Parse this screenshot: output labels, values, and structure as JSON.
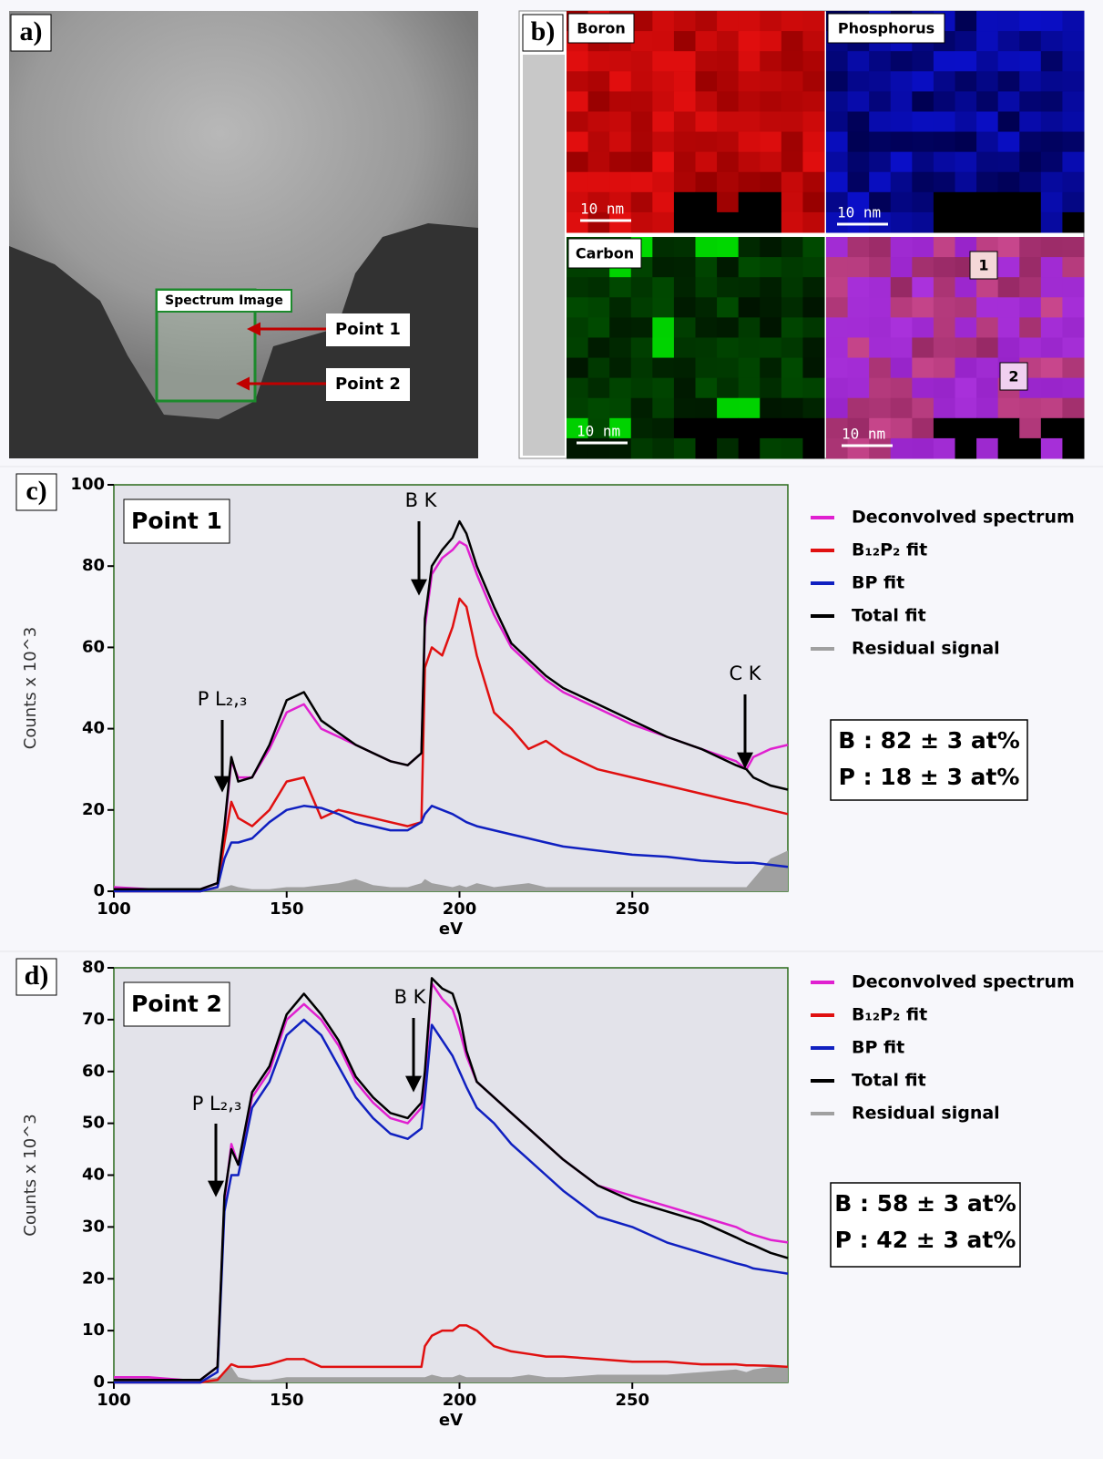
{
  "panel_a": {
    "label": "a)",
    "box_label": "Spectrum Image",
    "points": [
      "Point 1",
      "Point 2"
    ]
  },
  "panel_b": {
    "label": "b)",
    "maps": [
      "Boron",
      "Phosphorus",
      "Carbon"
    ],
    "scale_bar": "10 nm",
    "markers": [
      "1",
      "2"
    ]
  },
  "chart_data": [
    {
      "type": "line",
      "panel_label": "c)",
      "title": "Point 1",
      "x_label": "eV",
      "y_label": "Counts x 10^3",
      "x": [
        100,
        110,
        120,
        125,
        130,
        132,
        134,
        136,
        140,
        145,
        150,
        155,
        160,
        165,
        170,
        175,
        180,
        185,
        189,
        190,
        192,
        195,
        198,
        200,
        202,
        205,
        210,
        215,
        220,
        225,
        230,
        240,
        250,
        260,
        270,
        280,
        283,
        285,
        290,
        295
      ],
      "xlim": [
        100,
        295
      ],
      "xticks": [
        100,
        150,
        200,
        250
      ],
      "ylim": [
        0,
        100
      ],
      "yticks": [
        0,
        20,
        40,
        60,
        80,
        100
      ],
      "series": [
        {
          "name": "Deconvolved spectrum",
          "color": "#e020d0",
          "values": [
            1,
            0.5,
            0.5,
            0.5,
            2,
            15,
            32,
            28,
            28,
            35,
            44,
            46,
            40,
            38,
            36,
            34,
            32,
            31,
            34,
            65,
            78,
            82,
            84,
            86,
            85,
            78,
            68,
            60,
            56,
            52,
            49,
            45,
            41,
            38,
            35,
            32,
            30,
            33,
            35,
            36
          ]
        },
        {
          "name": "B₁₂P₂ fit",
          "color": "#e01010",
          "values": [
            0,
            0,
            0,
            0,
            1,
            12,
            22,
            18,
            16,
            20,
            27,
            28,
            18,
            20,
            19,
            18,
            17,
            16,
            17,
            55,
            60,
            58,
            65,
            72,
            70,
            58,
            44,
            40,
            35,
            37,
            34,
            30,
            28,
            26,
            24,
            22,
            21.5,
            21,
            20,
            19
          ]
        },
        {
          "name": "BP fit",
          "color": "#1020c0",
          "values": [
            0,
            0,
            0,
            0,
            1,
            8,
            12,
            12,
            13,
            17,
            20,
            21,
            20.5,
            19,
            17,
            16,
            15,
            15,
            17,
            19,
            21,
            20,
            19,
            18,
            17,
            16,
            15,
            14,
            13,
            12,
            11,
            10,
            9,
            8.5,
            7.5,
            7,
            7,
            7,
            6.5,
            6
          ]
        },
        {
          "name": "Total fit",
          "color": "#000000",
          "values": [
            0.5,
            0.5,
            0.5,
            0.5,
            2,
            16,
            33,
            27,
            28,
            36,
            47,
            49,
            42,
            39,
            36,
            34,
            32,
            31,
            34,
            67,
            80,
            84,
            87,
            91,
            88,
            80,
            70,
            61,
            57,
            53,
            50,
            46,
            42,
            38,
            35,
            31,
            30,
            28,
            26,
            25
          ]
        },
        {
          "name": "Residual signal",
          "color": "#a0a0a0",
          "values": [
            0.5,
            0.5,
            0.3,
            0.3,
            0.5,
            1,
            1.5,
            1,
            0.5,
            0.5,
            1,
            1,
            1.5,
            2,
            3,
            1.5,
            1,
            1,
            2,
            3,
            2,
            1.5,
            1,
            1.5,
            1,
            2,
            1,
            1.5,
            2,
            1,
            1,
            1,
            1,
            1,
            1,
            1,
            1,
            3,
            8,
            10
          ]
        }
      ],
      "annotations": [
        "B K",
        "P L₂,₃",
        "C K"
      ],
      "composition": [
        "B : 82 ± 3 at%",
        "P : 18 ± 3 at%"
      ]
    },
    {
      "type": "line",
      "panel_label": "d)",
      "title": "Point 2",
      "x_label": "eV",
      "y_label": "Counts x 10^3",
      "x": [
        100,
        110,
        120,
        125,
        130,
        132,
        134,
        136,
        140,
        145,
        150,
        155,
        160,
        165,
        170,
        175,
        180,
        185,
        189,
        190,
        192,
        195,
        198,
        200,
        202,
        205,
        210,
        215,
        220,
        225,
        230,
        240,
        250,
        260,
        270,
        280,
        283,
        285,
        290,
        295
      ],
      "xlim": [
        100,
        295
      ],
      "xticks": [
        100,
        150,
        200,
        250
      ],
      "ylim": [
        0,
        80
      ],
      "yticks": [
        0,
        10,
        20,
        30,
        40,
        50,
        60,
        70,
        80
      ],
      "series": [
        {
          "name": "Deconvolved spectrum",
          "color": "#e020d0",
          "values": [
            1,
            1,
            0.5,
            0.5,
            3,
            35,
            46,
            42,
            55,
            60,
            70,
            73,
            70,
            65,
            58,
            54,
            51,
            50,
            53,
            58,
            77,
            74,
            72,
            68,
            63,
            58,
            55,
            52,
            49,
            46,
            43,
            38,
            36,
            34,
            32,
            30,
            29,
            28.5,
            27.5,
            27
          ]
        },
        {
          "name": "B₁₂P₂ fit",
          "color": "#e01010",
          "values": [
            0,
            0,
            0,
            0,
            0.5,
            2,
            3.5,
            3,
            3,
            3.5,
            4.5,
            4.5,
            3,
            3,
            3,
            3,
            3,
            3,
            3,
            7,
            9,
            10,
            10,
            11,
            11,
            10,
            7,
            6,
            5.5,
            5,
            5,
            4.5,
            4,
            4,
            3.5,
            3.5,
            3.3,
            3.3,
            3.2,
            3
          ]
        },
        {
          "name": "BP fit",
          "color": "#1020c0",
          "values": [
            0,
            0,
            0,
            0,
            2,
            33,
            40,
            40,
            53,
            58,
            67,
            70,
            67,
            61,
            55,
            51,
            48,
            47,
            49,
            55,
            69,
            66,
            63,
            60,
            57,
            53,
            50,
            46,
            43,
            40,
            37,
            32,
            30,
            27,
            25,
            23,
            22.5,
            22,
            21.5,
            21
          ]
        },
        {
          "name": "Total fit",
          "color": "#000000",
          "values": [
            0.5,
            0.5,
            0.5,
            0.5,
            3,
            36,
            45,
            42,
            56,
            61,
            71,
            75,
            71,
            66,
            59,
            55,
            52,
            51,
            54,
            60,
            78,
            76,
            75,
            71,
            64,
            58,
            55,
            52,
            49,
            46,
            43,
            38,
            35,
            33,
            31,
            28,
            27,
            26.5,
            25,
            24
          ]
        },
        {
          "name": "Residual signal",
          "color": "#a0a0a0",
          "values": [
            1,
            1,
            0.5,
            0.5,
            1,
            2,
            3,
            1,
            0.5,
            0.5,
            1,
            1,
            1,
            1,
            1,
            1,
            1,
            1,
            1,
            1,
            1.5,
            1,
            1,
            1.5,
            1,
            1,
            1,
            1,
            1.5,
            1,
            1,
            1.5,
            1.5,
            1.5,
            2,
            2.5,
            2,
            2.5,
            3,
            3
          ]
        }
      ],
      "annotations": [
        "B K",
        "P L₂,₃"
      ],
      "composition": [
        "B : 58 ± 3 at%",
        "P : 42 ± 3 at%"
      ]
    }
  ]
}
